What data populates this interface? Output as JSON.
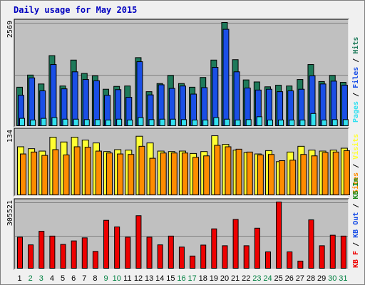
{
  "title": "Daily usage for May 2015",
  "colors": {
    "hits": "#1e7a5a",
    "files": "#1a4fe6",
    "pages": "#33e0f0",
    "visits": "#ffff33",
    "sites": "#ff8c00",
    "kb_in": "#1a8a1a",
    "kb_out": "#1a4fe6",
    "kb_f": "#ee0000",
    "weekday_label": "#000000",
    "weekend_label": "#008040",
    "panel_bg": "#c0c0c0"
  },
  "panels": {
    "top": {
      "ymax_label": "2569",
      "right_labels": [
        "Pages",
        "Files",
        "Hits"
      ]
    },
    "mid": {
      "ymax_label": "134",
      "right_labels": [
        "Sites",
        "Visits"
      ]
    },
    "bot": {
      "ymax_label": "305521",
      "right_labels": [
        "KB F",
        "KB Out",
        "KB In"
      ],
      "right_separators": [
        "/",
        "/"
      ]
    }
  },
  "chart_data": [
    {
      "type": "bar",
      "title": "Daily usage for May 2015",
      "categories": [
        "1",
        "2",
        "3",
        "4",
        "5",
        "6",
        "7",
        "8",
        "9",
        "10",
        "11",
        "12",
        "13",
        "14",
        "15",
        "16",
        "17",
        "18",
        "19",
        "20",
        "21",
        "22",
        "23",
        "24",
        "25",
        "26",
        "27",
        "28",
        "29",
        "30",
        "31"
      ],
      "weekend_days": [
        "2",
        "3",
        "9",
        "10",
        "16",
        "17",
        "23",
        "24",
        "30",
        "31"
      ],
      "ymax": 2569,
      "series": [
        {
          "name": "Hits",
          "values": [
            970,
            1270,
            1050,
            1750,
            1000,
            1640,
            1310,
            1250,
            920,
            990,
            1000,
            1700,
            860,
            1060,
            1260,
            1060,
            970,
            1210,
            1640,
            2569,
            1650,
            1150,
            1100,
            980,
            1020,
            1000,
            1160,
            1530,
            1110,
            1260,
            1090
          ]
        },
        {
          "name": "Files",
          "values": [
            770,
            1200,
            880,
            1530,
            930,
            1350,
            1160,
            1130,
            770,
            910,
            720,
            1600,
            780,
            1030,
            940,
            1000,
            800,
            960,
            1460,
            2400,
            1350,
            950,
            900,
            920,
            860,
            880,
            920,
            1250,
            1050,
            1120,
            1020
          ]
        },
        {
          "name": "Pages",
          "values": [
            200,
            160,
            200,
            220,
            180,
            180,
            170,
            170,
            160,
            180,
            160,
            220,
            170,
            180,
            180,
            170,
            160,
            160,
            220,
            180,
            160,
            170,
            240,
            160,
            160,
            160,
            160,
            320,
            160,
            170,
            170
          ]
        }
      ]
    },
    {
      "type": "bar",
      "categories": [
        "1",
        "2",
        "3",
        "4",
        "5",
        "6",
        "7",
        "8",
        "9",
        "10",
        "11",
        "12",
        "13",
        "14",
        "15",
        "16",
        "17",
        "18",
        "19",
        "20",
        "21",
        "22",
        "23",
        "24",
        "25",
        "26",
        "27",
        "28",
        "29",
        "30",
        "31"
      ],
      "ymax": 134,
      "series": [
        {
          "name": "Visits",
          "values": [
            102,
            98,
            93,
            122,
            112,
            122,
            116,
            110,
            92,
            96,
            95,
            124,
            110,
            93,
            92,
            93,
            88,
            92,
            125,
            107,
            95,
            90,
            87,
            94,
            71,
            91,
            103,
            95,
            93,
            95,
            99
          ]
        },
        {
          "name": "Sites",
          "values": [
            87,
            91,
            84,
            96,
            85,
            102,
            101,
            93,
            89,
            87,
            86,
            103,
            78,
            89,
            89,
            89,
            80,
            83,
            105,
            102,
            97,
            91,
            85,
            86,
            73,
            74,
            86,
            83,
            90,
            91,
            94
          ]
        }
      ]
    },
    {
      "type": "bar",
      "categories": [
        "1",
        "2",
        "3",
        "4",
        "5",
        "6",
        "7",
        "8",
        "9",
        "10",
        "11",
        "12",
        "13",
        "14",
        "15",
        "16",
        "17",
        "18",
        "19",
        "20",
        "21",
        "22",
        "23",
        "24",
        "25",
        "26",
        "27",
        "28",
        "29",
        "30",
        "31"
      ],
      "ymax": 305521,
      "series": [
        {
          "name": "KB F",
          "values": [
            145000,
            110000,
            172000,
            150000,
            112000,
            128000,
            142000,
            80000,
            222000,
            192000,
            145000,
            243000,
            145000,
            110000,
            150000,
            100000,
            59000,
            109000,
            183000,
            106000,
            226000,
            106000,
            186000,
            78000,
            305521,
            78000,
            36000,
            224000,
            106000,
            154000,
            150000
          ]
        }
      ]
    }
  ]
}
